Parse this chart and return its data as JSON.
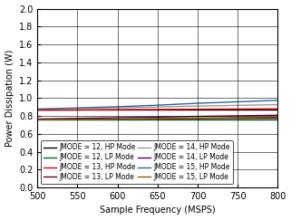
{
  "x": [
    500,
    550,
    600,
    650,
    700,
    750,
    800
  ],
  "lines": {
    "jmode12_hp": {
      "color": "#000000",
      "label": "JMODE = 12, HP Mode",
      "y": [
        0.868,
        0.868,
        0.868,
        0.868,
        0.868,
        0.868,
        0.868
      ]
    },
    "jmode13_hp": {
      "color": "#dd0000",
      "label": "JMODE = 13, HP Mode",
      "y": [
        0.865,
        0.867,
        0.87,
        0.872,
        0.875,
        0.877,
        0.88
      ]
    },
    "jmode14_hp": {
      "color": "#999999",
      "label": "JMODE = 14, HP Mode",
      "y": [
        0.878,
        0.885,
        0.892,
        0.9,
        0.91,
        0.918,
        0.926
      ]
    },
    "jmode15_hp": {
      "color": "#336699",
      "label": "JMODE = 15, HP Mode",
      "y": [
        0.875,
        0.89,
        0.903,
        0.92,
        0.942,
        0.958,
        0.975
      ]
    },
    "jmode12_lp": {
      "color": "#006622",
      "label": "JMODE = 12, LP Mode",
      "y": [
        0.762,
        0.762,
        0.762,
        0.762,
        0.762,
        0.762,
        0.762
      ]
    },
    "jmode13_lp": {
      "color": "#660022",
      "label": "JMODE = 13, LP Mode",
      "y": [
        0.76,
        0.762,
        0.764,
        0.767,
        0.77,
        0.772,
        0.774
      ]
    },
    "jmode14_lp": {
      "color": "#550055",
      "label": "JMODE = 14, LP Mode",
      "y": [
        0.766,
        0.773,
        0.78,
        0.787,
        0.795,
        0.801,
        0.808
      ]
    },
    "jmode15_lp": {
      "color": "#886600",
      "label": "JMODE = 15, LP Mode",
      "y": [
        0.757,
        0.76,
        0.764,
        0.77,
        0.777,
        0.782,
        0.787
      ]
    }
  },
  "xlabel": "Sample Frequency (MSPS)",
  "ylabel": "Power Dissipation (W)",
  "xlim": [
    500,
    800
  ],
  "ylim": [
    0,
    2
  ],
  "xticks": [
    500,
    550,
    600,
    650,
    700,
    750,
    800
  ],
  "yticks": [
    0,
    0.2,
    0.4,
    0.6,
    0.8,
    1.0,
    1.2,
    1.4,
    1.6,
    1.8,
    2.0
  ],
  "legend_order_col1": [
    "jmode12_hp",
    "jmode13_hp",
    "jmode14_hp",
    "jmode15_hp"
  ],
  "legend_order_col2": [
    "jmode12_lp",
    "jmode13_lp",
    "jmode14_lp",
    "jmode15_lp"
  ],
  "fig_width": 3.21,
  "fig_height": 2.43,
  "dpi": 100
}
